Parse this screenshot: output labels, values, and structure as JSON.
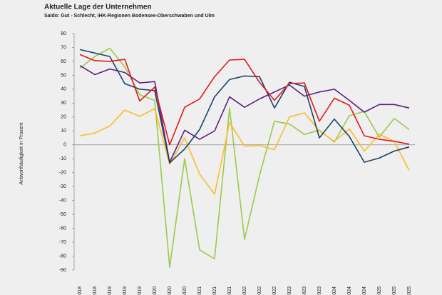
{
  "chart_data": {
    "type": "line",
    "title": "Aktuelle Lage der Unternehmen",
    "subtitle": "Saldo: Gut - Schlecht, IHK-Regionen Bodensee-Oberschwaben und Ulm",
    "y_label": "Antworthäufigkeit in Prozent",
    "categories": [
      "2018",
      "2018",
      "2019",
      "2019",
      "2019",
      "2020",
      "2020",
      "2020",
      "2021",
      "2021",
      "2021",
      "2022",
      "2022",
      "2022",
      "2023",
      "2023",
      "2023",
      "2024",
      "2024",
      "2024",
      "2025",
      "2025",
      "2025"
    ],
    "ylim": [
      -90,
      80
    ],
    "yticks": [
      -90,
      -80,
      -70,
      -60,
      -50,
      -40,
      -30,
      -20,
      -10,
      0,
      10,
      20,
      30,
      40,
      50,
      60,
      70,
      80
    ],
    "series": [
      {
        "color": "#9bca4a",
        "values": [
          55,
          63.5,
          69.5,
          56,
          36,
          32,
          -88,
          -10,
          -75.5,
          -82,
          26.5,
          -68,
          -22,
          17,
          15,
          7.5,
          10.5,
          2,
          21,
          24,
          5.5,
          19,
          11
        ]
      },
      {
        "color": "#fbbc2c",
        "values": [
          6.5,
          8.5,
          13.5,
          25,
          20.5,
          26,
          -14,
          5,
          -21,
          -35.5,
          16,
          -1,
          -0.5,
          -3.5,
          20,
          23,
          10,
          2.5,
          11.5,
          -4.5,
          7.5,
          2.5,
          -18.5
        ]
      },
      {
        "color": "#5c1f85",
        "values": [
          57,
          50.5,
          54.5,
          52,
          44.5,
          45.5,
          -12.5,
          10.5,
          4,
          10,
          34.5,
          27,
          33,
          38,
          43,
          35,
          38,
          40,
          32,
          23.5,
          29,
          29,
          26.5
        ]
      },
      {
        "color": "#17436b",
        "values": [
          68.5,
          66,
          63.5,
          44,
          40,
          39,
          -13,
          -3,
          11,
          34.5,
          47,
          49.5,
          49,
          26.5,
          45,
          42,
          5,
          18.5,
          6,
          -12.5,
          -9.5,
          -4.5,
          -1.5
        ]
      },
      {
        "color": "#e0191b",
        "values": [
          65,
          60.5,
          60,
          61.5,
          31.5,
          41.5,
          0,
          27,
          33,
          49,
          61,
          61.5,
          45,
          32,
          44,
          44.5,
          17,
          33.5,
          28.5,
          6.5,
          4,
          2.5,
          0.5
        ]
      }
    ]
  }
}
